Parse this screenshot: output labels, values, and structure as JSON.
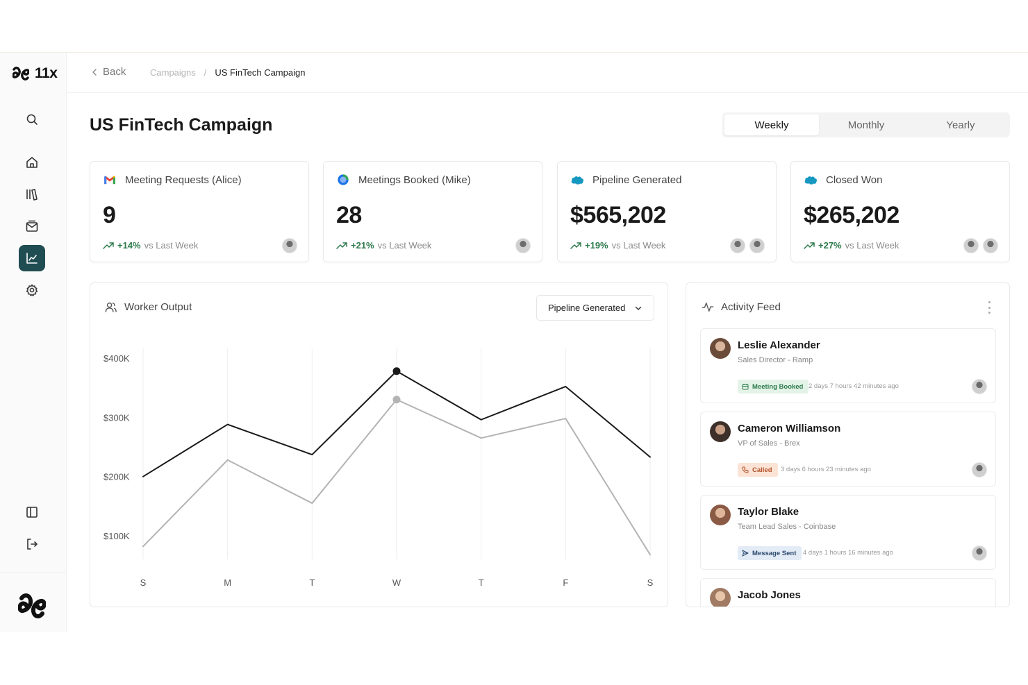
{
  "app": {
    "brand": "11x"
  },
  "sidebar": {
    "items": [
      {
        "name": "search",
        "icon": "search-icon"
      },
      {
        "name": "home",
        "icon": "home-icon"
      },
      {
        "name": "library",
        "icon": "library-icon"
      },
      {
        "name": "inbox",
        "icon": "mail-icon"
      },
      {
        "name": "analytics",
        "icon": "chart-icon",
        "active": true
      },
      {
        "name": "settings",
        "icon": "gear-icon"
      },
      {
        "name": "collapse-panel",
        "icon": "panel-icon"
      },
      {
        "name": "logout",
        "icon": "logout-icon"
      }
    ],
    "active_color": "#1f4d52"
  },
  "topbar": {
    "back_label": "Back",
    "breadcrumb": {
      "parent": "Campaigns",
      "separator": "/",
      "current": "US FinTech Campaign"
    }
  },
  "header": {
    "title": "US FinTech Campaign",
    "periods": [
      "Weekly",
      "Monthly",
      "Yearly"
    ],
    "active_period": "Weekly"
  },
  "kpis": [
    {
      "label": "Meeting Requests (Alice)",
      "icon": "gmail-icon",
      "value": "9",
      "delta": "+14%",
      "delta_suffix": "vs Last Week",
      "avatars": 1
    },
    {
      "label": "Meetings Booked (Mike)",
      "icon": "calendar-icon",
      "value": "28",
      "delta": "+21%",
      "delta_suffix": "vs Last Week",
      "avatars": 1
    },
    {
      "label": "Pipeline Generated",
      "icon": "salesforce-icon",
      "value": "$565,202",
      "delta": "+19%",
      "delta_suffix": "vs Last Week",
      "avatars": 2
    },
    {
      "label": "Closed Won",
      "icon": "salesforce-icon",
      "value": "$265,202",
      "delta": "+27%",
      "delta_suffix": "vs Last Week",
      "avatars": 2
    }
  ],
  "worker_output": {
    "title": "Worker Output",
    "metric_select": "Pipeline Generated"
  },
  "chart_data": {
    "type": "line",
    "categories": [
      "S",
      "M",
      "T",
      "W",
      "T",
      "F",
      "S"
    ],
    "y_tick_labels": [
      "$400K",
      "$300K",
      "$200K",
      "$100K"
    ],
    "ylim": [
      0,
      400000
    ],
    "yticks": [
      400000,
      300000,
      200000,
      100000
    ],
    "grid": "vertical",
    "series": [
      {
        "color": "#1a1a1a",
        "values": [
          200000,
          288000,
          237000,
          378000,
          296000,
          352000,
          233000
        ]
      },
      {
        "color": "#b3b3b3",
        "values": [
          82000,
          228000,
          155000,
          330000,
          265000,
          298000,
          68000
        ]
      }
    ],
    "highlighted_category_index": 3
  },
  "activity_feed": {
    "title": "Activity Feed",
    "items": [
      {
        "name": "Leslie Alexander",
        "role": "Sales Director - Ramp",
        "tag": "Meeting Booked",
        "tag_style": "green",
        "tag_icon": "calendar-icon",
        "time": "2 days 7 hours 42 minutes ago",
        "avatar_color": "#6b4b3a"
      },
      {
        "name": "Cameron Williamson",
        "role": "VP of Sales - Brex",
        "tag": "Called",
        "tag_style": "orange",
        "tag_icon": "phone-icon",
        "time": "3 days 6 hours 23 minutes ago",
        "avatar_color": "#3d2f2a"
      },
      {
        "name": "Taylor Blake",
        "role": "Team Lead Sales - Coinbase",
        "tag": "Message Sent",
        "tag_style": "blue",
        "tag_icon": "send-icon",
        "time": "4 days 1 hours 16 minutes ago",
        "avatar_color": "#8a5a44"
      },
      {
        "name": "Jacob Jones",
        "role": "",
        "tag": "",
        "tag_style": "",
        "tag_icon": "",
        "time": "",
        "avatar_color": "#a07a62"
      }
    ]
  }
}
